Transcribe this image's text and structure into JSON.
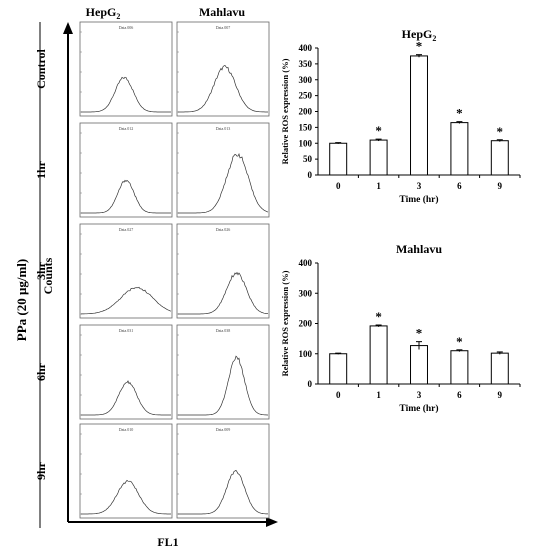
{
  "figure": {
    "row_group_label": "PPa (20 μg/ml)",
    "y_axis_label": "Counts",
    "x_axis_label": "FL1",
    "column_headers": [
      "HepG",
      "Mahlavu"
    ],
    "column_header_subscript": "2",
    "rows": [
      {
        "label": "Control",
        "panel_captions": [
          "Data.006",
          "Data.007"
        ]
      },
      {
        "label": "1hr",
        "panel_captions": [
          "Data.012",
          "Data.013"
        ]
      },
      {
        "label": "3hr",
        "panel_captions": [
          "Data.027",
          "Data.026"
        ]
      },
      {
        "label": "6hr",
        "panel_captions": [
          "Data.031",
          "Data.038"
        ]
      },
      {
        "label": "9hr",
        "panel_captions": [
          "Data.010",
          "Data.009"
        ]
      }
    ]
  },
  "chart_data": [
    {
      "type": "bar",
      "title": "HepG",
      "title_subscript": "2",
      "xlabel": "Time (hr)",
      "ylabel": "Relative ROS expression (%)",
      "ylim": [
        0,
        400
      ],
      "yticks": [
        0,
        50,
        100,
        150,
        200,
        250,
        300,
        350,
        400
      ],
      "categories": [
        "0",
        "1",
        "3",
        "6",
        "9"
      ],
      "values": [
        100,
        110,
        375,
        165,
        108
      ],
      "errors": [
        2,
        3,
        4,
        3,
        3
      ],
      "significant": [
        false,
        true,
        true,
        true,
        true
      ],
      "marker": "*",
      "bar_color": "#ffffff",
      "edge_color": "#000000"
    },
    {
      "type": "bar",
      "title": "Mahlavu",
      "xlabel": "Time (hr)",
      "ylabel": "Relative ROS expression (%)",
      "ylim": [
        0,
        400
      ],
      "yticks": [
        0,
        100,
        200,
        300,
        400
      ],
      "categories": [
        "0",
        "1",
        "3",
        "6",
        "9"
      ],
      "values": [
        100,
        192,
        127,
        110,
        102
      ],
      "errors": [
        2,
        3,
        13,
        3,
        4
      ],
      "significant": [
        false,
        true,
        true,
        true,
        false
      ],
      "marker": "*",
      "bar_color": "#ffffff",
      "edge_color": "#000000"
    }
  ]
}
